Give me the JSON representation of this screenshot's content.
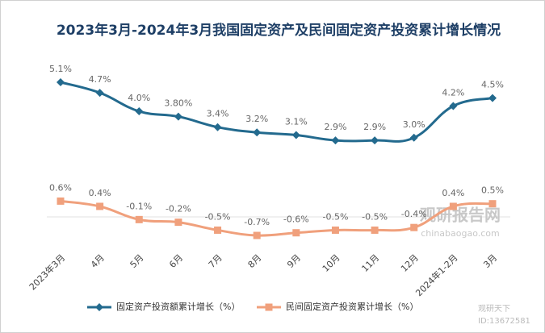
{
  "chart_data": {
    "type": "line",
    "title": "2023年3月-2024年3月我国固定资产及民间固定资产投资累计增长情况",
    "categories": [
      "2023年3月",
      "4月",
      "5月",
      "6月",
      "7月",
      "8月",
      "9月",
      "10月",
      "11月",
      "12月",
      "2024年1-2月",
      "3月"
    ],
    "series": [
      {
        "name": "固定资产投资额累计增长（%）",
        "color": "#236a8e",
        "marker": "diamond",
        "values": [
          5.1,
          4.7,
          4.0,
          3.8,
          3.4,
          3.2,
          3.1,
          2.9,
          2.9,
          3.0,
          4.2,
          4.5
        ],
        "value_labels": [
          "5.1%",
          "4.7%",
          "4.0%",
          "3.80%",
          "3.4%",
          "3.2%",
          "3.1%",
          "2.9%",
          "2.9%",
          "3.0%",
          "4.2%",
          "4.5%"
        ]
      },
      {
        "name": "民间固定资产投资累计增长（%）",
        "color": "#f0a07c",
        "marker": "square",
        "values": [
          0.6,
          0.4,
          -0.1,
          -0.2,
          -0.5,
          -0.7,
          -0.6,
          -0.5,
          -0.5,
          -0.4,
          0.4,
          0.5
        ],
        "value_labels": [
          "0.6%",
          "0.4%",
          "-0.1%",
          "-0.2%",
          "-0.5%",
          "-0.7%",
          "-0.6%",
          "-0.5%",
          "-0.5%",
          "-0.4%",
          "0.4%",
          "0.5%"
        ]
      }
    ],
    "watermark": [
      "观研报告网",
      "chinabaogao.com",
      "观研天下",
      "ID:13672581"
    ]
  }
}
